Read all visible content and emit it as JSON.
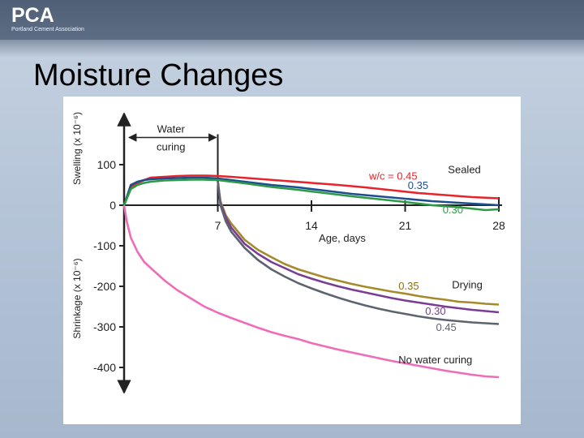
{
  "logo": {
    "mark": "PCA",
    "subtitle": "Portland Cement Association"
  },
  "slide": {
    "title": "Moisture Changes"
  },
  "colors": {
    "sealed_045": "#e8232b",
    "sealed_035": "#1d4e8f",
    "sealed_030": "#2e9a46",
    "drying_035": "#a48a2a",
    "drying_030": "#7a3d96",
    "drying_045": "#5d6470",
    "no_curing": "#ef6cb8",
    "label_red": "#e8232b",
    "label_blue": "#1d4e8f",
    "label_green": "#2e9a46",
    "label_gold": "#8a6f10",
    "label_purple": "#7a3d96",
    "label_gray": "#5d6470"
  },
  "chart_data": {
    "type": "line",
    "xlabel": "Age, days",
    "ylabel_top": "Swelling (x 10⁻⁶)",
    "ylabel_bottom": "Shrinkage (x 10⁻⁶)",
    "xlim": [
      0,
      28
    ],
    "ylim": [
      -450,
      210
    ],
    "x_ticks": [
      7,
      14,
      21,
      28
    ],
    "y_ticks": [
      100,
      0,
      -100,
      -200,
      -300,
      -400
    ],
    "curing_annotation": {
      "line1": "Water",
      "line2": "curing",
      "from_day": 0,
      "to_day": 7
    },
    "group_labels": {
      "sealed": "Sealed",
      "drying": "Drying"
    },
    "series": [
      {
        "name": "Sealed w/c = 0.45",
        "label": "w/c = 0.45",
        "color_key": "sealed_045",
        "points": [
          [
            0,
            0
          ],
          [
            0.5,
            45
          ],
          [
            1,
            55
          ],
          [
            1.5,
            62
          ],
          [
            2,
            68
          ],
          [
            3,
            70
          ],
          [
            4,
            72
          ],
          [
            5,
            73
          ],
          [
            6,
            73
          ],
          [
            7,
            72
          ],
          [
            8,
            70
          ],
          [
            10,
            65
          ],
          [
            12,
            60
          ],
          [
            14,
            55
          ],
          [
            16,
            50
          ],
          [
            18,
            44
          ],
          [
            20,
            37
          ],
          [
            22,
            30
          ],
          [
            24,
            25
          ],
          [
            26,
            20
          ],
          [
            28,
            17
          ]
        ]
      },
      {
        "name": "Sealed 0.35",
        "label": "0.35",
        "color_key": "sealed_035",
        "points": [
          [
            0,
            0
          ],
          [
            0.5,
            50
          ],
          [
            1,
            58
          ],
          [
            1.5,
            62
          ],
          [
            2,
            64
          ],
          [
            3,
            66
          ],
          [
            4,
            67
          ],
          [
            5,
            68
          ],
          [
            6,
            68
          ],
          [
            7,
            66
          ],
          [
            9,
            58
          ],
          [
            11,
            50
          ],
          [
            13,
            44
          ],
          [
            15,
            36
          ],
          [
            17,
            28
          ],
          [
            19,
            22
          ],
          [
            21,
            16
          ],
          [
            23,
            10
          ],
          [
            25,
            6
          ],
          [
            27,
            2
          ],
          [
            28,
            0
          ]
        ]
      },
      {
        "name": "Sealed 0.30",
        "label": "0.30",
        "color_key": "sealed_030",
        "points": [
          [
            0,
            0
          ],
          [
            0.5,
            40
          ],
          [
            1,
            50
          ],
          [
            1.5,
            55
          ],
          [
            2,
            58
          ],
          [
            3,
            61
          ],
          [
            4,
            62
          ],
          [
            5,
            63
          ],
          [
            6,
            63
          ],
          [
            7,
            62
          ],
          [
            9,
            54
          ],
          [
            11,
            45
          ],
          [
            13,
            38
          ],
          [
            15,
            30
          ],
          [
            17,
            22
          ],
          [
            19,
            15
          ],
          [
            21,
            8
          ],
          [
            23,
            0
          ],
          [
            25,
            -5
          ],
          [
            27,
            -12
          ],
          [
            28,
            -10
          ]
        ]
      },
      {
        "name": "Drying 0.35",
        "label": "0.35",
        "color_key": "drying_035",
        "points": [
          [
            7,
            60
          ],
          [
            7.2,
            10
          ],
          [
            7.6,
            -25
          ],
          [
            8,
            -45
          ],
          [
            9,
            -85
          ],
          [
            10,
            -110
          ],
          [
            11,
            -128
          ],
          [
            12,
            -145
          ],
          [
            13,
            -158
          ],
          [
            14,
            -168
          ],
          [
            15,
            -178
          ],
          [
            16,
            -186
          ],
          [
            17,
            -194
          ],
          [
            18,
            -201
          ],
          [
            19,
            -207
          ],
          [
            20,
            -213
          ],
          [
            21,
            -218
          ],
          [
            22,
            -224
          ],
          [
            23,
            -229
          ],
          [
            24,
            -233
          ],
          [
            25,
            -238
          ],
          [
            26,
            -240
          ],
          [
            27,
            -243
          ],
          [
            28,
            -245
          ]
        ]
      },
      {
        "name": "Drying 0.30",
        "label": "0.30",
        "color_key": "drying_030",
        "points": [
          [
            7,
            60
          ],
          [
            7.2,
            5
          ],
          [
            7.6,
            -30
          ],
          [
            8,
            -55
          ],
          [
            9,
            -95
          ],
          [
            10,
            -120
          ],
          [
            11,
            -140
          ],
          [
            12,
            -155
          ],
          [
            13,
            -170
          ],
          [
            14,
            -181
          ],
          [
            15,
            -191
          ],
          [
            16,
            -200
          ],
          [
            17,
            -208
          ],
          [
            18,
            -215
          ],
          [
            19,
            -222
          ],
          [
            20,
            -229
          ],
          [
            21,
            -235
          ],
          [
            22,
            -240
          ],
          [
            23,
            -245
          ],
          [
            24,
            -250
          ],
          [
            25,
            -254
          ],
          [
            26,
            -258
          ],
          [
            27,
            -261
          ],
          [
            28,
            -264
          ]
        ]
      },
      {
        "name": "Drying 0.45",
        "label": "0.45",
        "color_key": "drying_045",
        "points": [
          [
            7,
            60
          ],
          [
            7.2,
            0
          ],
          [
            7.6,
            -40
          ],
          [
            8,
            -65
          ],
          [
            9,
            -105
          ],
          [
            10,
            -135
          ],
          [
            11,
            -158
          ],
          [
            12,
            -176
          ],
          [
            13,
            -192
          ],
          [
            14,
            -205
          ],
          [
            15,
            -217
          ],
          [
            16,
            -228
          ],
          [
            17,
            -238
          ],
          [
            18,
            -247
          ],
          [
            19,
            -255
          ],
          [
            20,
            -262
          ],
          [
            21,
            -268
          ],
          [
            22,
            -274
          ],
          [
            23,
            -279
          ],
          [
            24,
            -283
          ],
          [
            25,
            -286
          ],
          [
            26,
            -289
          ],
          [
            27,
            -291
          ],
          [
            28,
            -293
          ]
        ]
      },
      {
        "name": "No water curing",
        "label": "No water curing",
        "color_key": "no_curing",
        "points": [
          [
            0,
            0
          ],
          [
            0.2,
            -40
          ],
          [
            0.5,
            -80
          ],
          [
            1,
            -115
          ],
          [
            1.5,
            -140
          ],
          [
            2,
            -155
          ],
          [
            3,
            -185
          ],
          [
            4,
            -210
          ],
          [
            5,
            -230
          ],
          [
            6,
            -250
          ],
          [
            7,
            -265
          ],
          [
            8,
            -278
          ],
          [
            9,
            -290
          ],
          [
            10,
            -302
          ],
          [
            11,
            -313
          ],
          [
            12,
            -322
          ],
          [
            13,
            -330
          ],
          [
            14,
            -340
          ],
          [
            15,
            -348
          ],
          [
            16,
            -356
          ],
          [
            17,
            -363
          ],
          [
            18,
            -370
          ],
          [
            19,
            -377
          ],
          [
            20,
            -384
          ],
          [
            21,
            -390
          ],
          [
            22,
            -396
          ],
          [
            23,
            -402
          ],
          [
            24,
            -408
          ],
          [
            25,
            -413
          ],
          [
            26,
            -418
          ],
          [
            27,
            -422
          ],
          [
            28,
            -424
          ]
        ]
      }
    ]
  }
}
